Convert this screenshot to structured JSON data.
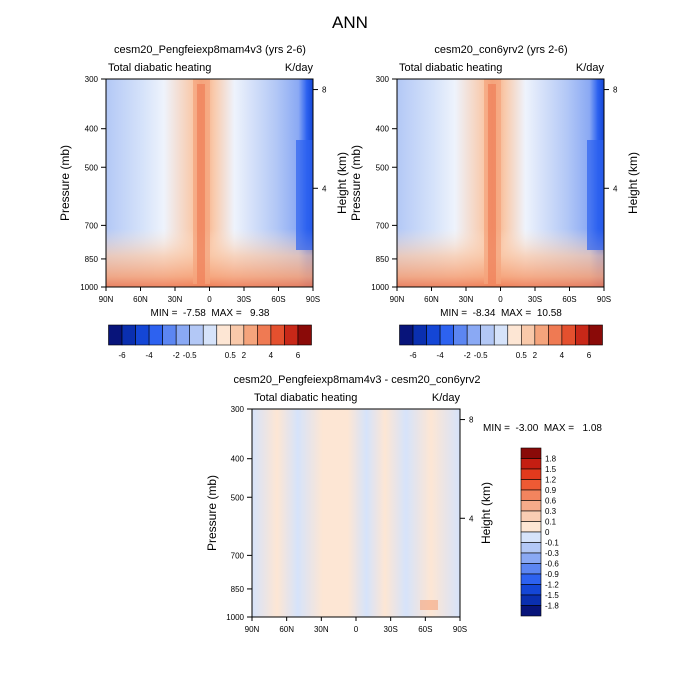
{
  "title": "ANN",
  "chart_data": [
    {
      "type": "heatmap",
      "title": "cesm20_Pengfeiexp8mam4v3 (yrs 2-6)",
      "subtitle_left": "Total diabatic heating",
      "subtitle_right": "K/day",
      "ylabel": "Pressure (mb)",
      "ylabel_right": "Height (km)",
      "x_ticks": [
        "90N",
        "60N",
        "30N",
        "0",
        "30S",
        "60S",
        "90S"
      ],
      "y_ticks": [
        "300",
        "400",
        "500",
        "700",
        "850",
        "1000"
      ],
      "y_right_ticks": [
        "8",
        "4"
      ],
      "stats": "MIN =  -7.58  MAX =   9.38",
      "ylim": [
        1000,
        300
      ]
    },
    {
      "type": "heatmap",
      "title": "cesm20_con6yrv2 (yrs 2-6)",
      "subtitle_left": "Total diabatic heating",
      "subtitle_right": "K/day",
      "ylabel": "Pressure (mb)",
      "ylabel_right": "Height (km)",
      "x_ticks": [
        "90N",
        "60N",
        "30N",
        "0",
        "30S",
        "60S",
        "90S"
      ],
      "y_ticks": [
        "300",
        "400",
        "500",
        "700",
        "850",
        "1000"
      ],
      "y_right_ticks": [
        "8",
        "4"
      ],
      "stats": "MIN =  -8.34  MAX =  10.58",
      "ylim": [
        1000,
        300
      ]
    },
    {
      "type": "heatmap",
      "title": "cesm20_Pengfeiexp8mam4v3 - cesm20_con6yrv2",
      "subtitle_left": "Total diabatic heating",
      "subtitle_right": "K/day",
      "ylabel": "Pressure (mb)",
      "ylabel_right": "Height (km)",
      "x_ticks": [
        "90N",
        "60N",
        "30N",
        "0",
        "30S",
        "60S",
        "90S"
      ],
      "y_ticks": [
        "300",
        "400",
        "500",
        "700",
        "850",
        "1000"
      ],
      "y_right_ticks": [
        "8",
        "4"
      ],
      "stats": "MIN =  -3.00  MAX =   1.08",
      "ylim": [
        1000,
        300
      ]
    }
  ],
  "colorbar_top": {
    "labels": [
      "-6",
      "-4",
      "-2",
      "-0.5",
      "0.5",
      "2",
      "4",
      "6"
    ],
    "colors": [
      "#08147a",
      "#0a2fb0",
      "#1446d6",
      "#2d62f0",
      "#5c86f2",
      "#8aa9f4",
      "#b3c8f6",
      "#d6e3fa",
      "#fde6d4",
      "#f9c9aa",
      "#f5a47c",
      "#ef7a53",
      "#e4502e",
      "#c82818",
      "#8a0a08"
    ]
  },
  "colorbar_diff": {
    "labels": [
      "1.8",
      "1.5",
      "1.2",
      "0.9",
      "0.6",
      "0.3",
      "0.1",
      "0",
      "-0.1",
      "-0.3",
      "-0.6",
      "-0.9",
      "-1.2",
      "-1.5",
      "-1.8"
    ],
    "colors": [
      "#8a0a08",
      "#c41e12",
      "#e23a1d",
      "#ee5a34",
      "#f3845e",
      "#f6ab8a",
      "#f9cdb3",
      "#fde6d4",
      "#d6e3fa",
      "#b3c8f6",
      "#8aa9f4",
      "#5c86f2",
      "#2d62f0",
      "#1446d6",
      "#0a2fb0",
      "#08147a"
    ]
  }
}
